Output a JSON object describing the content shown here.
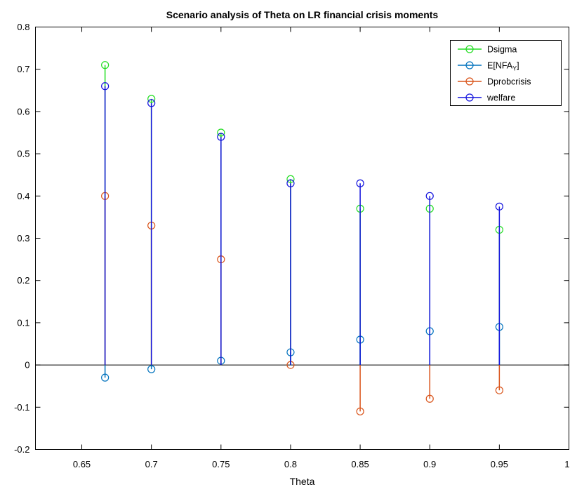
{
  "chart_data": {
    "type": "bar",
    "variant": "stem",
    "title": "Scenario analysis of Theta on LR financial crisis moments",
    "xlabel": "Theta",
    "x": [
      0.6667,
      0.7,
      0.75,
      0.8,
      0.85,
      0.9,
      0.95
    ],
    "xlim": [
      0.6167,
      1
    ],
    "ylim": [
      -0.2,
      0.8
    ],
    "xticks": [
      0.65,
      0.7,
      0.75,
      0.8,
      0.85,
      0.9,
      0.95,
      1
    ],
    "xtick_labels": [
      "0.65",
      "0.7",
      "0.75",
      "0.8",
      "0.85",
      "0.9",
      "0.95",
      "1"
    ],
    "yticks": [
      -0.2,
      -0.1,
      0,
      0.1,
      0.2,
      0.3,
      0.4,
      0.5,
      0.6,
      0.7,
      0.8
    ],
    "ytick_labels": [
      "-0.2",
      "-0.1",
      "0",
      "0.1",
      "0.2",
      "0.3",
      "0.4",
      "0.5",
      "0.6",
      "0.7",
      "0.8"
    ],
    "baseline": 0,
    "grid": false,
    "box": true,
    "legend_position": "top-right",
    "series": [
      {
        "name": "Dsigma",
        "color": "#22dd22",
        "marker": "circle",
        "values": [
          0.71,
          0.63,
          0.55,
          0.44,
          0.37,
          0.37,
          0.32
        ]
      },
      {
        "name": "E[NFAY]",
        "name_subscript": "Y",
        "color": "#0072bd",
        "marker": "circle",
        "values": [
          -0.03,
          -0.01,
          0.01,
          0.03,
          0.06,
          0.08,
          0.09
        ]
      },
      {
        "name": "Dprobcrisis",
        "color": "#d95319",
        "marker": "circle",
        "values": [
          0.4,
          0.33,
          0.25,
          0.0,
          -0.11,
          -0.08,
          -0.06
        ]
      },
      {
        "name": "welfare",
        "color": "#1111dd",
        "marker": "circle",
        "values": [
          0.66,
          0.62,
          0.54,
          0.43,
          0.43,
          0.4,
          0.375
        ]
      }
    ]
  }
}
